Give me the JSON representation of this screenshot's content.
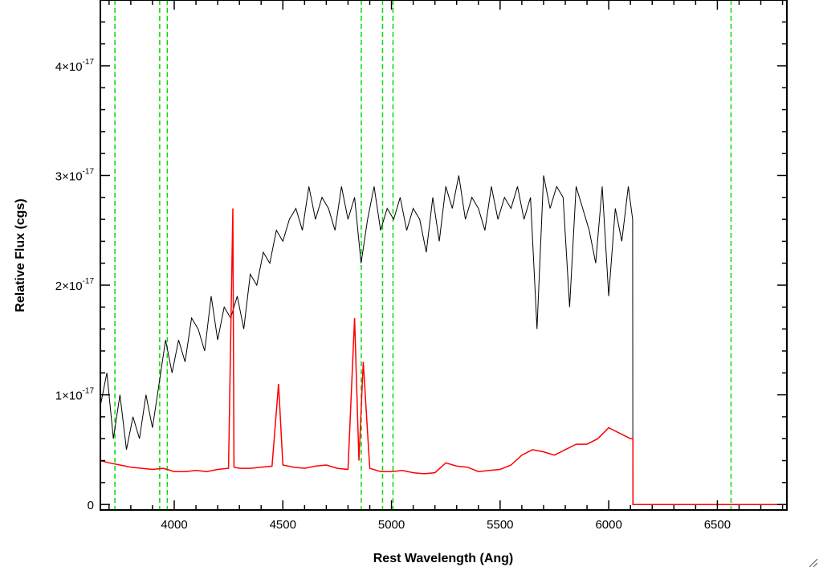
{
  "chart_data": {
    "type": "line",
    "xlabel": "Rest Wavelength (Ang)",
    "ylabel": "Relative Flux (cgs)",
    "xlim": [
      3660,
      6820
    ],
    "ylim": [
      -5e-19,
      4.6e-17
    ],
    "x_ticks": [
      {
        "value": 4000,
        "label": "4000"
      },
      {
        "value": 4500,
        "label": "4500"
      },
      {
        "value": 5000,
        "label": "5000"
      },
      {
        "value": 5500,
        "label": "5500"
      },
      {
        "value": 6000,
        "label": "6000"
      },
      {
        "value": 6500,
        "label": "6500"
      }
    ],
    "y_ticks": [
      {
        "value": 0,
        "mant": "0",
        "exp": ""
      },
      {
        "value": 1e-17,
        "mant": "1×10",
        "exp": "-17"
      },
      {
        "value": 2e-17,
        "mant": "2×10",
        "exp": "-17"
      },
      {
        "value": 3e-17,
        "mant": "3×10",
        "exp": "-17"
      },
      {
        "value": 4e-17,
        "mant": "4×10",
        "exp": "-17"
      }
    ],
    "reference_lines": [
      3727,
      3933,
      3968,
      4861,
      4959,
      5007,
      6563
    ],
    "series": [
      {
        "color": "#000000",
        "x": [
          3660,
          3690,
          3720,
          3750,
          3780,
          3810,
          3840,
          3870,
          3900,
          3930,
          3960,
          3990,
          4020,
          4050,
          4080,
          4110,
          4140,
          4170,
          4200,
          4230,
          4260,
          4290,
          4320,
          4350,
          4380,
          4410,
          4440,
          4470,
          4500,
          4530,
          4560,
          4590,
          4620,
          4650,
          4680,
          4710,
          4740,
          4770,
          4800,
          4830,
          4860,
          4890,
          4920,
          4950,
          4980,
          5010,
          5040,
          5070,
          5100,
          5130,
          5160,
          5190,
          5220,
          5250,
          5280,
          5310,
          5340,
          5370,
          5400,
          5430,
          5460,
          5490,
          5520,
          5550,
          5580,
          5610,
          5640,
          5670,
          5700,
          5730,
          5760,
          5790,
          5820,
          5850,
          5880,
          5910,
          5940,
          5970,
          6000,
          6030,
          6060,
          6090,
          6110,
          6111,
          6820
        ],
        "y": [
          9e-18,
          1.2e-17,
          6e-18,
          1e-17,
          5e-18,
          8e-18,
          6e-18,
          1e-17,
          7e-18,
          1.1e-17,
          1.5e-17,
          1.2e-17,
          1.5e-17,
          1.3e-17,
          1.7e-17,
          1.6e-17,
          1.4e-17,
          1.9e-17,
          1.5e-17,
          1.8e-17,
          1.7e-17,
          1.9e-17,
          1.6e-17,
          2.1e-17,
          2e-17,
          2.3e-17,
          2.2e-17,
          2.5e-17,
          2.4e-17,
          2.6e-17,
          2.7e-17,
          2.5e-17,
          2.9e-17,
          2.6e-17,
          2.8e-17,
          2.7e-17,
          2.5e-17,
          2.9e-17,
          2.6e-17,
          2.8e-17,
          2.2e-17,
          2.6e-17,
          2.9e-17,
          2.5e-17,
          2.7e-17,
          2.6e-17,
          2.8e-17,
          2.5e-17,
          2.7e-17,
          2.6e-17,
          2.3e-17,
          2.8e-17,
          2.4e-17,
          2.9e-17,
          2.7e-17,
          3e-17,
          2.6e-17,
          2.8e-17,
          2.7e-17,
          2.5e-17,
          2.9e-17,
          2.6e-17,
          2.8e-17,
          2.7e-17,
          2.9e-17,
          2.6e-17,
          2.8e-17,
          1.6e-17,
          3e-17,
          2.7e-17,
          2.9e-17,
          2.8e-17,
          1.8e-17,
          2.9e-17,
          2.7e-17,
          2.5e-17,
          2.2e-17,
          2.9e-17,
          1.9e-17,
          2.7e-17,
          2.4e-17,
          2.9e-17,
          2.6e-17,
          0,
          0
        ]
      },
      {
        "color": "#ff0000",
        "x": [
          3660,
          3700,
          3750,
          3800,
          3850,
          3900,
          3950,
          4000,
          4050,
          4100,
          4150,
          4200,
          4250,
          4270,
          4275,
          4300,
          4350,
          4400,
          4450,
          4480,
          4500,
          4550,
          4600,
          4650,
          4700,
          4750,
          4800,
          4830,
          4850,
          4870,
          4900,
          4950,
          5000,
          5050,
          5100,
          5150,
          5200,
          5250,
          5300,
          5350,
          5400,
          5450,
          5500,
          5550,
          5600,
          5650,
          5700,
          5750,
          5800,
          5850,
          5900,
          5950,
          6000,
          6050,
          6100,
          6111,
          6112,
          6820
        ],
        "y": [
          4e-18,
          3.8e-18,
          3.6e-18,
          3.4e-18,
          3.3e-18,
          3.2e-18,
          3.3e-18,
          3e-18,
          3e-18,
          3.1e-18,
          3e-18,
          3.2e-18,
          3.3e-18,
          2.7e-17,
          3.4e-18,
          3.3e-18,
          3.3e-18,
          3.4e-18,
          3.5e-18,
          1.1e-17,
          3.6e-18,
          3.4e-18,
          3.3e-18,
          3.5e-18,
          3.6e-18,
          3.3e-18,
          3.2e-18,
          1.7e-17,
          4e-18,
          1.3e-17,
          3.3e-18,
          3e-18,
          3e-18,
          3.1e-18,
          2.9e-18,
          2.8e-18,
          2.9e-18,
          3.8e-18,
          3.5e-18,
          3.4e-18,
          3e-18,
          3.1e-18,
          3.2e-18,
          3.6e-18,
          4.5e-18,
          5e-18,
          4.8e-18,
          4.5e-18,
          5e-18,
          5.5e-18,
          5.5e-18,
          6e-18,
          7e-18,
          6.5e-18,
          6e-18,
          6e-18,
          0,
          0
        ]
      }
    ]
  }
}
